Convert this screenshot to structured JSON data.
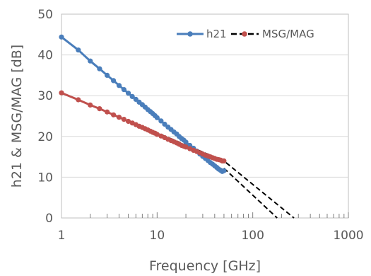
{
  "chart_data": {
    "type": "scatter",
    "x_scale": "log",
    "xlim": [
      1,
      1000
    ],
    "ylim": [
      0,
      50
    ],
    "xlabel": "Frequency [GHz]",
    "ylabel": "h21 & MSG/MAG [dB]",
    "x_ticks": [
      1,
      10,
      100,
      1000
    ],
    "x_tick_labels": [
      "1",
      "10",
      "100",
      "1000"
    ],
    "y_ticks": [
      0,
      10,
      20,
      30,
      40,
      50
    ],
    "y_tick_labels": [
      "0",
      "10",
      "20",
      "30",
      "40",
      "50"
    ],
    "grid": "horizontal",
    "legend_position": "top-right",
    "series": [
      {
        "name": "h21",
        "color": "#4a7ebb",
        "style": "line-with-markers",
        "x": [
          1,
          1.5,
          2,
          2.5,
          3,
          3.5,
          4,
          4.5,
          5,
          5.5,
          6,
          6.5,
          7,
          7.5,
          8,
          8.5,
          9,
          9.5,
          10,
          11,
          12,
          13,
          14,
          15,
          16,
          17,
          18,
          19,
          20,
          22,
          24,
          26,
          28,
          30,
          32,
          34,
          36,
          38,
          40,
          42,
          44,
          46,
          48,
          50
        ],
        "y": [
          44.4,
          41.2,
          38.5,
          36.6,
          35.0,
          33.7,
          32.5,
          31.5,
          30.6,
          29.8,
          29.1,
          28.4,
          27.8,
          27.2,
          26.6,
          26.1,
          25.6,
          25.1,
          24.6,
          23.8,
          23.0,
          22.3,
          21.7,
          21.1,
          20.6,
          20.0,
          19.5,
          19.1,
          18.6,
          17.8,
          17.1,
          16.4,
          15.7,
          15.1,
          14.6,
          14.1,
          13.6,
          13.2,
          12.8,
          12.4,
          12.0,
          11.7,
          11.4,
          11.6
        ]
      },
      {
        "name": "MSG/MAG",
        "color": "#c0504d",
        "style": "line-with-markers",
        "x": [
          1,
          1.5,
          2,
          2.5,
          3,
          3.5,
          4,
          4.5,
          5,
          5.5,
          6,
          6.5,
          7,
          7.5,
          8,
          8.5,
          9,
          9.5,
          10,
          11,
          12,
          13,
          14,
          15,
          16,
          17,
          18,
          19,
          20,
          22,
          24,
          26,
          28,
          30,
          32,
          34,
          36,
          38,
          40,
          42,
          44,
          46,
          48,
          50
        ],
        "y": [
          30.7,
          29.0,
          27.7,
          26.8,
          26.0,
          25.3,
          24.7,
          24.2,
          23.7,
          23.3,
          22.9,
          22.5,
          22.2,
          21.9,
          21.6,
          21.3,
          21.0,
          20.8,
          20.5,
          20.1,
          19.7,
          19.3,
          19.0,
          18.7,
          18.4,
          18.1,
          17.8,
          17.6,
          17.4,
          17.0,
          16.6,
          16.3,
          16.0,
          15.7,
          15.4,
          15.2,
          15.0,
          14.8,
          14.6,
          14.4,
          14.3,
          14.2,
          14.0,
          14.0
        ]
      }
    ],
    "trendlines": [
      {
        "series": "h21",
        "style": "dashed",
        "color": "#000000",
        "x": [
          50,
          180
        ],
        "y": [
          12.2,
          0
        ]
      },
      {
        "series": "MSG/MAG",
        "style": "dashed",
        "color": "#000000",
        "x": [
          1,
          50,
          270
        ],
        "y": [
          30.7,
          14.0,
          0
        ]
      }
    ]
  }
}
